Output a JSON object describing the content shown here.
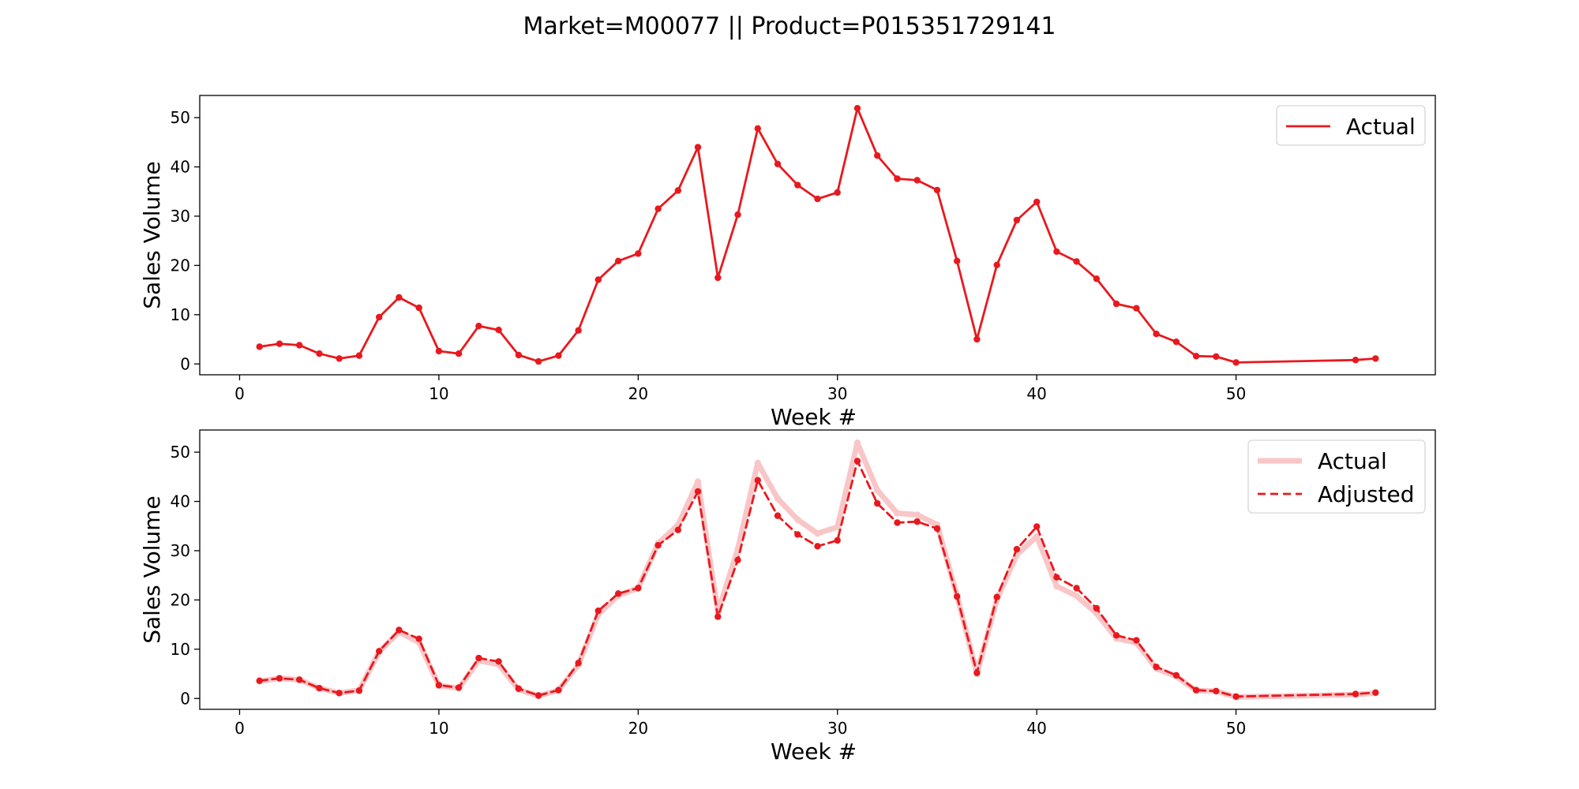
{
  "figure_title": "Market=M00077 || Product=P015351729141",
  "colors": {
    "actual": "#e8191e",
    "actual_faded": "#f9c6c8",
    "adjusted": "#e8191e",
    "axes": "#000000",
    "background": "#ffffff"
  },
  "chart_data": [
    {
      "type": "line",
      "xlabel": "Week #",
      "ylabel": "Sales Volume",
      "xlim": [
        -2,
        60
      ],
      "ylim": [
        -2.2,
        54.5
      ],
      "xticks": [
        0,
        10,
        20,
        30,
        40,
        50
      ],
      "yticks": [
        0,
        10,
        20,
        30,
        40,
        50
      ],
      "grid": false,
      "legend_position": "top-right",
      "x": [
        1,
        2,
        3,
        4,
        5,
        6,
        7,
        8,
        9,
        10,
        11,
        12,
        13,
        14,
        15,
        16,
        17,
        18,
        19,
        20,
        21,
        22,
        23,
        24,
        25,
        26,
        27,
        28,
        29,
        30,
        31,
        32,
        33,
        34,
        35,
        36,
        37,
        38,
        39,
        40,
        41,
        42,
        43,
        44,
        45,
        46,
        47,
        48,
        49,
        50,
        56,
        57
      ],
      "series": [
        {
          "name": "Actual",
          "style": "solid",
          "values": [
            3.5,
            4.1,
            3.8,
            2.1,
            1.1,
            1.7,
            9.5,
            13.5,
            11.4,
            2.6,
            2.1,
            7.7,
            6.9,
            1.8,
            0.5,
            1.7,
            6.8,
            17.1,
            20.9,
            22.4,
            31.5,
            35.2,
            44.0,
            17.5,
            30.3,
            47.8,
            40.6,
            36.3,
            33.5,
            34.8,
            51.9,
            42.3,
            37.6,
            37.3,
            35.3,
            20.9,
            5.0,
            20.1,
            29.2,
            32.9,
            22.8,
            20.8,
            17.3,
            12.2,
            11.3,
            6.1,
            4.5,
            1.6,
            1.5,
            0.3,
            0.8,
            1.1
          ]
        }
      ]
    },
    {
      "type": "line",
      "xlabel": "Week #",
      "ylabel": "Sales Volume",
      "xlim": [
        -2,
        60
      ],
      "ylim": [
        -2.2,
        54.5
      ],
      "xticks": [
        0,
        10,
        20,
        30,
        40,
        50
      ],
      "yticks": [
        0,
        10,
        20,
        30,
        40,
        50
      ],
      "grid": false,
      "legend_position": "top-right",
      "x": [
        1,
        2,
        3,
        4,
        5,
        6,
        7,
        8,
        9,
        10,
        11,
        12,
        13,
        14,
        15,
        16,
        17,
        18,
        19,
        20,
        21,
        22,
        23,
        24,
        25,
        26,
        27,
        28,
        29,
        30,
        31,
        32,
        33,
        34,
        35,
        36,
        37,
        38,
        39,
        40,
        41,
        42,
        43,
        44,
        45,
        46,
        47,
        48,
        49,
        50,
        56,
        57
      ],
      "series": [
        {
          "name": "Actual",
          "style": "solid-faded",
          "values": [
            3.5,
            4.1,
            3.8,
            2.1,
            1.1,
            1.7,
            9.5,
            13.5,
            11.4,
            2.6,
            2.1,
            7.7,
            6.9,
            1.8,
            0.5,
            1.7,
            6.8,
            17.1,
            20.9,
            22.4,
            31.5,
            35.2,
            44.0,
            17.5,
            30.3,
            47.8,
            40.6,
            36.3,
            33.5,
            34.8,
            51.9,
            42.3,
            37.6,
            37.3,
            35.3,
            20.9,
            5.0,
            20.1,
            29.2,
            32.9,
            22.8,
            20.8,
            17.3,
            12.2,
            11.3,
            6.1,
            4.5,
            1.6,
            1.5,
            0.3,
            0.8,
            1.1
          ]
        },
        {
          "name": "Adjusted",
          "style": "dashed",
          "values": [
            3.6,
            4.1,
            3.8,
            2.1,
            1.1,
            1.6,
            9.6,
            13.9,
            12.1,
            2.7,
            2.2,
            8.2,
            7.5,
            2.0,
            0.6,
            1.7,
            7.2,
            17.8,
            21.3,
            22.4,
            31.1,
            34.2,
            42.0,
            16.6,
            28.1,
            44.3,
            37.1,
            33.3,
            30.9,
            32.1,
            48.2,
            39.6,
            35.7,
            35.9,
            34.5,
            20.7,
            5.2,
            20.6,
            30.3,
            34.9,
            24.6,
            22.4,
            18.3,
            12.8,
            11.8,
            6.4,
            4.7,
            1.7,
            1.5,
            0.4,
            0.9,
            1.2
          ]
        }
      ]
    }
  ]
}
